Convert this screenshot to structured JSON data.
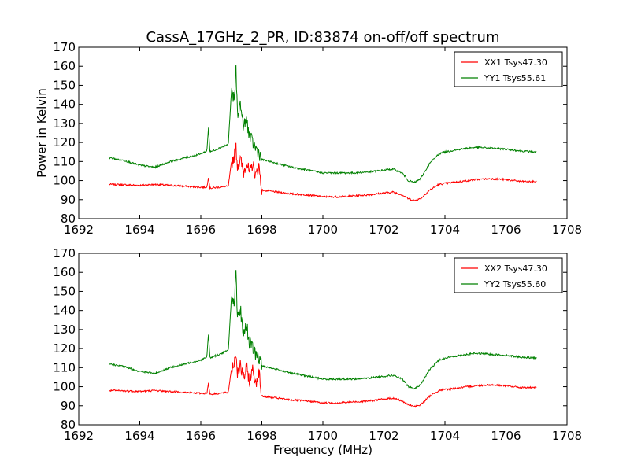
{
  "chart_data": [
    {
      "type": "line",
      "title": "CassA_17GHz_2_PR, ID:83874 on-off/off spectrum",
      "xlabel": "",
      "ylabel": "Power in Kelvin",
      "xlim": [
        1692,
        1708
      ],
      "ylim": [
        80,
        170
      ],
      "xticks": [
        1692,
        1694,
        1696,
        1698,
        1700,
        1702,
        1704,
        1706,
        1708
      ],
      "yticks": [
        80,
        90,
        100,
        110,
        120,
        130,
        140,
        150,
        160,
        170
      ],
      "grid": false,
      "legend_position": "upper-right",
      "series": [
        {
          "name": "XX1 Tsys47.30",
          "color": "#ff0000",
          "x": [
            1693.0,
            1693.5,
            1694.0,
            1694.5,
            1695.0,
            1695.5,
            1696.0,
            1696.2,
            1696.25,
            1696.3,
            1696.6,
            1696.9,
            1697.0,
            1697.1,
            1697.15,
            1697.2,
            1697.3,
            1697.4,
            1697.5,
            1697.6,
            1697.7,
            1697.8,
            1697.9,
            1698.0,
            1698.5,
            1699.0,
            1699.5,
            1700.0,
            1700.5,
            1701.0,
            1701.5,
            1702.0,
            1702.3,
            1702.6,
            1702.8,
            1703.0,
            1703.2,
            1703.5,
            1703.8,
            1704.0,
            1704.5,
            1705.0,
            1705.5,
            1706.0,
            1706.5,
            1707.0
          ],
          "values": [
            98,
            97.8,
            97.5,
            98,
            97.5,
            97,
            96.5,
            96.5,
            102,
            96,
            96.5,
            97,
            109,
            113,
            118,
            108,
            111,
            104,
            110,
            103,
            109,
            102,
            108,
            95,
            94,
            93,
            92.5,
            91.5,
            91.5,
            92,
            92.5,
            93.5,
            94,
            92.5,
            90.5,
            89.5,
            90.5,
            95,
            98,
            98.5,
            99.5,
            100.5,
            101,
            100.5,
            99.5,
            99.5
          ]
        },
        {
          "name": "YY1 Tsys55.61",
          "color": "#008000",
          "x": [
            1693.0,
            1693.5,
            1694.0,
            1694.5,
            1695.0,
            1695.5,
            1696.0,
            1696.2,
            1696.25,
            1696.3,
            1696.6,
            1696.9,
            1697.0,
            1697.1,
            1697.15,
            1697.2,
            1697.3,
            1697.4,
            1697.5,
            1697.6,
            1697.7,
            1697.8,
            1697.9,
            1698.0,
            1698.5,
            1699.0,
            1699.5,
            1700.0,
            1700.5,
            1701.0,
            1701.5,
            1702.0,
            1702.3,
            1702.6,
            1702.8,
            1703.0,
            1703.2,
            1703.5,
            1703.8,
            1704.0,
            1704.5,
            1705.0,
            1705.5,
            1706.0,
            1706.5,
            1707.0
          ],
          "values": [
            112,
            110.5,
            108,
            107,
            110,
            112,
            114,
            115.5,
            128,
            115,
            117,
            119,
            146,
            142,
            160,
            135,
            140,
            128,
            132,
            123,
            120,
            117,
            115,
            111,
            109,
            107,
            105.5,
            104,
            104,
            104,
            104.5,
            105.5,
            106,
            104,
            100,
            99,
            101,
            109,
            114,
            115,
            116.5,
            117.5,
            117,
            116.5,
            115.5,
            115
          ]
        }
      ]
    },
    {
      "type": "line",
      "title": "",
      "xlabel": "Frequency (MHz)",
      "ylabel": "",
      "xlim": [
        1692,
        1708
      ],
      "ylim": [
        80,
        170
      ],
      "xticks": [
        1692,
        1694,
        1696,
        1698,
        1700,
        1702,
        1704,
        1706,
        1708
      ],
      "yticks": [
        80,
        90,
        100,
        110,
        120,
        130,
        140,
        150,
        160,
        170
      ],
      "grid": false,
      "legend_position": "upper-right",
      "series": [
        {
          "name": "XX2 Tsys47.30",
          "color": "#ff0000",
          "x": [
            1693.0,
            1693.5,
            1694.0,
            1694.5,
            1695.0,
            1695.5,
            1696.0,
            1696.2,
            1696.25,
            1696.3,
            1696.6,
            1696.9,
            1697.0,
            1697.1,
            1697.15,
            1697.2,
            1697.3,
            1697.4,
            1697.5,
            1697.6,
            1697.7,
            1697.8,
            1697.9,
            1698.0,
            1698.5,
            1699.0,
            1699.5,
            1700.0,
            1700.5,
            1701.0,
            1701.5,
            1702.0,
            1702.3,
            1702.6,
            1702.8,
            1703.0,
            1703.2,
            1703.5,
            1703.8,
            1704.0,
            1704.5,
            1705.0,
            1705.5,
            1706.0,
            1706.5,
            1707.0
          ],
          "values": [
            98,
            97.8,
            97.5,
            98,
            97.5,
            97,
            96.5,
            96.5,
            102,
            96,
            96.5,
            97,
            109,
            113,
            118,
            108,
            111,
            104,
            110,
            103,
            109,
            102,
            108,
            95,
            94,
            93,
            92.5,
            91.5,
            91.5,
            92,
            92.5,
            93.5,
            94,
            92.5,
            90.5,
            89.5,
            90.5,
            95,
            98,
            98.5,
            99.5,
            100.5,
            101,
            100.5,
            99.5,
            99.5
          ]
        },
        {
          "name": "YY2 Tsys55.60",
          "color": "#008000",
          "x": [
            1693.0,
            1693.5,
            1694.0,
            1694.5,
            1695.0,
            1695.5,
            1696.0,
            1696.2,
            1696.25,
            1696.3,
            1696.6,
            1696.9,
            1697.0,
            1697.1,
            1697.15,
            1697.2,
            1697.3,
            1697.4,
            1697.5,
            1697.6,
            1697.7,
            1697.8,
            1697.9,
            1698.0,
            1698.5,
            1699.0,
            1699.5,
            1700.0,
            1700.5,
            1701.0,
            1701.5,
            1702.0,
            1702.3,
            1702.6,
            1702.8,
            1703.0,
            1703.2,
            1703.5,
            1703.8,
            1704.0,
            1704.5,
            1705.0,
            1705.5,
            1706.0,
            1706.5,
            1707.0
          ],
          "values": [
            112,
            110.5,
            108,
            107,
            110,
            112,
            114,
            115.5,
            128,
            115,
            117,
            119,
            146,
            142,
            160,
            135,
            140,
            128,
            132,
            123,
            120,
            117,
            115,
            111,
            109,
            107,
            105.5,
            104,
            104,
            104,
            104.5,
            105.5,
            106,
            104,
            100,
            99,
            101,
            109,
            114,
            115,
            116.5,
            117.5,
            117,
            116.5,
            115.5,
            115
          ]
        }
      ]
    }
  ]
}
